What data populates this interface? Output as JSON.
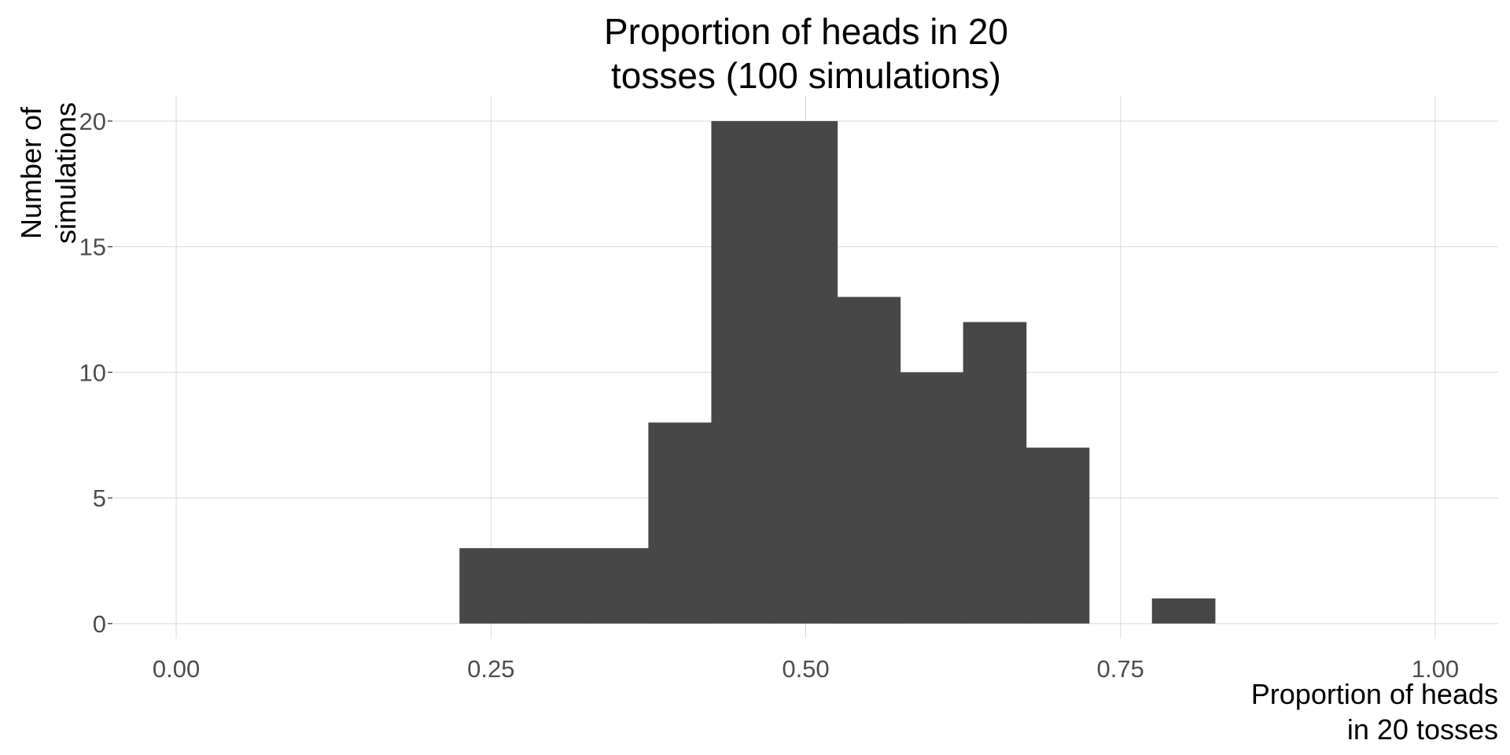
{
  "chart_data": {
    "type": "bar",
    "title_lines": [
      "Proportion of heads in 20",
      "tosses (100 simulations)"
    ],
    "xlabel_lines": [
      "Proportion of heads",
      "in 20 tosses"
    ],
    "ylabel_lines": [
      "Number of",
      "simulations"
    ],
    "x": {
      "range": [
        -0.05,
        1.05
      ],
      "ticks": [
        0.0,
        0.25,
        0.5,
        0.75,
        1.0
      ],
      "tick_labels": [
        "0.00",
        "0.25",
        "0.50",
        "0.75",
        "1.00"
      ]
    },
    "y": {
      "range": [
        -0.6,
        21
      ],
      "ticks": [
        0,
        5,
        10,
        15,
        20
      ],
      "tick_labels": [
        "0",
        "5",
        "10",
        "15",
        "20"
      ]
    },
    "bin_width": 0.05,
    "bins": [
      {
        "center": 0.25,
        "count": 3
      },
      {
        "center": 0.3,
        "count": 3
      },
      {
        "center": 0.35,
        "count": 3
      },
      {
        "center": 0.4,
        "count": 8
      },
      {
        "center": 0.45,
        "count": 20
      },
      {
        "center": 0.5,
        "count": 20
      },
      {
        "center": 0.55,
        "count": 13
      },
      {
        "center": 0.6,
        "count": 10
      },
      {
        "center": 0.65,
        "count": 12
      },
      {
        "center": 0.7,
        "count": 7
      },
      {
        "center": 0.75,
        "count": 0
      },
      {
        "center": 0.8,
        "count": 1
      }
    ],
    "grid": true,
    "legend": "none",
    "colors": {
      "bar": "#474747",
      "grid": "#d9d9d9",
      "text": "#000000",
      "tick_text": "#4d4d4d"
    }
  }
}
